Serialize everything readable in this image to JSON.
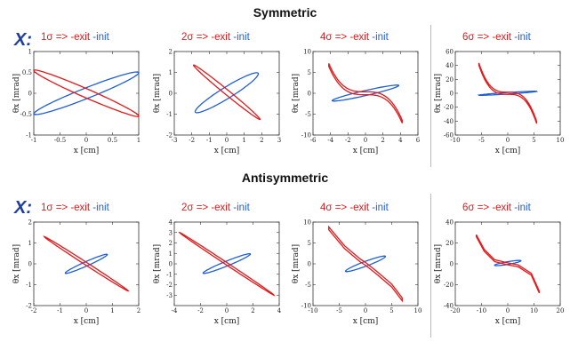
{
  "sections": [
    {
      "title": "Symmetric",
      "plane_label": "X:"
    },
    {
      "title": "Antisymmetric",
      "plane_label": "X:"
    }
  ],
  "legend": {
    "exit_color": "#e31a1c",
    "init_color": "#1f5fd6"
  },
  "chart_data": [
    {
      "type": "line",
      "section": "Symmetric",
      "title_exit": "1σ => -exit",
      "title_init": "-init",
      "xlabel": "x [cm]",
      "ylabel": "θx [mrad]",
      "xlim": [
        -1,
        1
      ],
      "ylim": [
        -1,
        1
      ],
      "xticks": [
        "-1",
        "-0.5",
        "0",
        "0.5",
        "1"
      ],
      "xtick_values": [
        -1,
        -0.5,
        0,
        0.5,
        1
      ],
      "yticks": [
        "1",
        "0.5",
        "0",
        "-0.5",
        "-1"
      ],
      "ytick_values": [
        1,
        0.5,
        0,
        -0.5,
        -1
      ],
      "init": {
        "kind": "ellipse",
        "endpoints": [
          [
            -1,
            -0.5
          ],
          [
            1,
            0.5
          ]
        ],
        "width": 0.12
      },
      "exit": {
        "kind": "ellipse",
        "endpoints": [
          [
            -1,
            0.55
          ],
          [
            1,
            -0.55
          ]
        ],
        "width": 0.1
      }
    },
    {
      "type": "line",
      "section": "Symmetric",
      "title_exit": "2σ => -exit",
      "title_init": "-init",
      "xlabel": "x [cm]",
      "ylabel": "θx [mrad]",
      "xlim": [
        -3,
        3
      ],
      "ylim": [
        -2,
        2
      ],
      "xticks": [
        "-3",
        "-2",
        "-1",
        "0",
        "1",
        "2",
        "3"
      ],
      "xtick_values": [
        -3,
        -2,
        -1,
        0,
        1,
        2,
        3
      ],
      "yticks": [
        "2",
        "1",
        "0",
        "-1",
        "-2"
      ],
      "ytick_values": [
        2,
        1,
        0,
        -1,
        -2
      ],
      "init": {
        "kind": "ellipse",
        "endpoints": [
          [
            -1.8,
            -0.9
          ],
          [
            1.8,
            0.95
          ]
        ],
        "width": 0.28
      },
      "exit": {
        "kind": "ellipse",
        "endpoints": [
          [
            -1.9,
            1.35
          ],
          [
            1.9,
            -1.25
          ]
        ],
        "width": 0.12
      }
    },
    {
      "type": "line",
      "section": "Symmetric",
      "title_exit": "4σ => -exit",
      "title_init": "-init",
      "xlabel": "x [cm]",
      "ylabel": "θx [mrad]",
      "xlim": [
        -6,
        6
      ],
      "ylim": [
        -10,
        10
      ],
      "xticks": [
        "-6",
        "-4",
        "-2",
        "0",
        "2",
        "4",
        "6"
      ],
      "xtick_values": [
        -6,
        -4,
        -2,
        0,
        2,
        4,
        6
      ],
      "yticks": [
        "10",
        "5",
        "0",
        "-5",
        "-10"
      ],
      "ytick_values": [
        10,
        5,
        0,
        -5,
        -10
      ],
      "init": {
        "kind": "ellipse",
        "endpoints": [
          [
            -3.8,
            -1.8
          ],
          [
            3.8,
            1.9
          ]
        ],
        "width": 0.55
      },
      "exit": {
        "kind": "cubic",
        "x_range": [
          -4.2,
          4.2
        ],
        "amp": 6.8,
        "offset": 0.35
      }
    },
    {
      "type": "line",
      "section": "Symmetric",
      "title_exit": "6σ => -exit",
      "title_init": "-init",
      "xlabel": "x [cm]",
      "ylabel": "θx [mrad]",
      "xlim": [
        -10,
        10
      ],
      "ylim": [
        -60,
        60
      ],
      "xticks": [
        "-10",
        "-5",
        "0",
        "5",
        "10"
      ],
      "xtick_values": [
        -10,
        -5,
        0,
        5,
        10
      ],
      "yticks": [
        "60",
        "40",
        "20",
        "0",
        "-20",
        "-40",
        "-60"
      ],
      "ytick_values": [
        60,
        40,
        20,
        0,
        -20,
        -40,
        -60
      ],
      "init": {
        "kind": "ellipse",
        "endpoints": [
          [
            -5.5,
            -2.8
          ],
          [
            5.5,
            2.8
          ]
        ],
        "width": 1.0
      },
      "exit": {
        "kind": "cubic",
        "x_range": [
          -5.5,
          5.5
        ],
        "amp": 42,
        "offset": 1.5
      }
    },
    {
      "type": "line",
      "section": "Antisymmetric",
      "title_exit": "1σ => -exit",
      "title_init": "-init",
      "xlabel": "x [cm]",
      "ylabel": "θx [mrad]",
      "xlim": [
        -2,
        2
      ],
      "ylim": [
        -2,
        2
      ],
      "xticks": [
        "-2",
        "-1",
        "0",
        "1",
        "2"
      ],
      "xtick_values": [
        -2,
        -1,
        0,
        1,
        2
      ],
      "yticks": [
        "2",
        "1",
        "0",
        "-1",
        "-2"
      ],
      "ytick_values": [
        2,
        1,
        0,
        -1,
        -2
      ],
      "init": {
        "kind": "ellipse",
        "endpoints": [
          [
            -0.8,
            -0.45
          ],
          [
            0.8,
            0.45
          ]
        ],
        "width": 0.1
      },
      "exit": {
        "kind": "ellipse",
        "endpoints": [
          [
            -1.6,
            1.3
          ],
          [
            1.6,
            -1.3
          ]
        ],
        "width": 0.06
      }
    },
    {
      "type": "line",
      "section": "Antisymmetric",
      "title_exit": "2σ => -exit",
      "title_init": "-init",
      "xlabel": "x [cm]",
      "ylabel": "θx [mrad]",
      "xlim": [
        -4,
        4
      ],
      "ylim": [
        -4,
        4
      ],
      "xticks": [
        "-4",
        "-2",
        "0",
        "2",
        "4"
      ],
      "xtick_values": [
        -4,
        -2,
        0,
        2,
        4
      ],
      "yticks": [
        "4",
        "3",
        "2",
        "1",
        "0",
        "-1",
        "-2",
        "-3"
      ],
      "ytick_values": [
        4,
        3,
        2,
        1,
        0,
        -1,
        -2,
        -3
      ],
      "init": {
        "kind": "ellipse",
        "endpoints": [
          [
            -1.8,
            -0.9
          ],
          [
            1.8,
            0.95
          ]
        ],
        "width": 0.22
      },
      "exit": {
        "kind": "ellipse",
        "endpoints": [
          [
            -3.6,
            3.0
          ],
          [
            3.6,
            -3.0
          ]
        ],
        "width": 0.1
      }
    },
    {
      "type": "line",
      "section": "Antisymmetric",
      "title_exit": "4σ => -exit",
      "title_init": "-init",
      "xlabel": "x [cm]",
      "ylabel": "θx [mrad]",
      "xlim": [
        -10,
        10
      ],
      "ylim": [
        -10,
        10
      ],
      "xticks": [
        "-10",
        "-5",
        "0",
        "5",
        "10"
      ],
      "xtick_values": [
        -10,
        -5,
        0,
        5,
        10
      ],
      "yticks": [
        "10",
        "5",
        "0",
        "-5",
        "-10"
      ],
      "ytick_values": [
        10,
        5,
        0,
        -5,
        -10
      ],
      "init": {
        "kind": "ellipse",
        "endpoints": [
          [
            -3.8,
            -1.8
          ],
          [
            3.8,
            1.8
          ]
        ],
        "width": 0.55
      },
      "exit": {
        "kind": "curve",
        "points": [
          [
            -7,
            8.5
          ],
          [
            -4,
            4
          ],
          [
            -1,
            0.8
          ],
          [
            0,
            0
          ],
          [
            2,
            -2
          ],
          [
            5,
            -5.2
          ],
          [
            7,
            -8.5
          ]
        ],
        "thickness": 0.35
      }
    },
    {
      "type": "line",
      "section": "Antisymmetric",
      "title_exit": "6σ => -exit",
      "title_init": "-init",
      "xlabel": "x [cm]",
      "ylabel": "θx [mrad]",
      "xlim": [
        -20,
        20
      ],
      "ylim": [
        -40,
        40
      ],
      "xticks": [
        "-20",
        "-10",
        "0",
        "10",
        "20"
      ],
      "xtick_values": [
        -20,
        -10,
        0,
        10,
        20
      ],
      "yticks": [
        "40",
        "20",
        "0",
        "-20",
        "-40"
      ],
      "ytick_values": [
        40,
        20,
        0,
        -20,
        -40
      ],
      "init": {
        "kind": "ellipse",
        "endpoints": [
          [
            -5,
            -1.5
          ],
          [
            5,
            3.0
          ]
        ],
        "width": 1.2
      },
      "exit": {
        "kind": "curve",
        "points": [
          [
            -12,
            27
          ],
          [
            -9,
            13
          ],
          [
            -5,
            3
          ],
          [
            0,
            0
          ],
          [
            4,
            -2
          ],
          [
            9,
            -10
          ],
          [
            12,
            -27
          ]
        ],
        "thickness": 0.9
      }
    }
  ]
}
